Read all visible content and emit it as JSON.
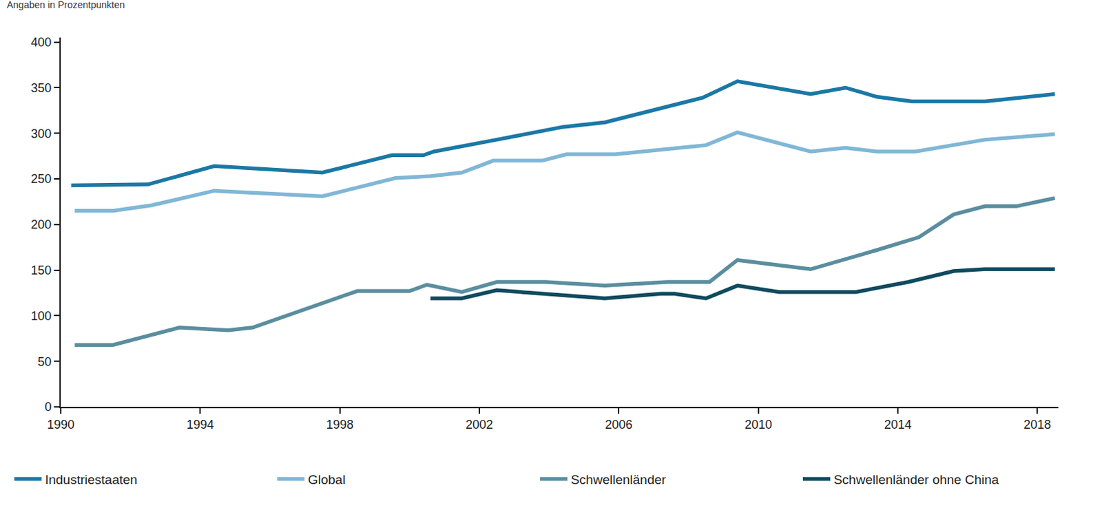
{
  "chart_data": {
    "type": "line",
    "y_label": "Angaben in Prozentpunkten",
    "xlim": [
      1990,
      2018.6
    ],
    "xticks": [
      1990,
      1994,
      1998,
      2002,
      2006,
      2010,
      2014,
      2018
    ],
    "ylim": [
      0,
      405
    ],
    "yticks": [
      0,
      50,
      100,
      150,
      200,
      250,
      300,
      350,
      400
    ],
    "grid": false,
    "legend": "bottom",
    "series": [
      {
        "name": "Industriestaaten",
        "color": "#1b78a5",
        "x": [
          1990.3,
          1992.5,
          1994.4,
          1997.5,
          1999.5,
          2000.4,
          2000.7,
          2001.3,
          2002.5,
          2004.4,
          2005.6,
          2008.4,
          2009.4,
          2011.5,
          2012.5,
          2013.4,
          2014.4,
          2016.5,
          2018.5
        ],
        "values": [
          243,
          244,
          264,
          257,
          276,
          276,
          280,
          284,
          293,
          307,
          312,
          339,
          357,
          343,
          350,
          340,
          335,
          335,
          343
        ]
      },
      {
        "name": "Global",
        "color": "#80b7d6",
        "x": [
          1990.4,
          1991.5,
          1992.6,
          1994.4,
          1997.5,
          1999.6,
          2000.6,
          2001.5,
          2002.4,
          2003.8,
          2004.5,
          2005.9,
          2008.5,
          2009.4,
          2011.5,
          2012.5,
          2013.4,
          2014.5,
          2016.5,
          2018.5
        ],
        "values": [
          215,
          215,
          221,
          237,
          231,
          251,
          253,
          257,
          270,
          270,
          277,
          277,
          287,
          301,
          280,
          284,
          280,
          280,
          293,
          299
        ]
      },
      {
        "name": "Schwellenländer",
        "color": "#5a8e9f",
        "x": [
          1990.4,
          1991.5,
          1993.4,
          1994.8,
          1995.5,
          1998.5,
          2000.0,
          2000.5,
          2001.5,
          2002.5,
          2003.9,
          2005.6,
          2007.4,
          2008.6,
          2009.4,
          2011.5,
          2013.4,
          2014.6,
          2015.6,
          2016.5,
          2017.4,
          2018.5
        ],
        "values": [
          68,
          68,
          87,
          84,
          87,
          127,
          127,
          134,
          126,
          137,
          137,
          133,
          137,
          137,
          161,
          151,
          172,
          186,
          211,
          220,
          220,
          229
        ]
      },
      {
        "name": "Schwellenländer ohne China",
        "color": "#0e4a5e",
        "x": [
          2000.6,
          2001.5,
          2002.5,
          2005.6,
          2007.2,
          2007.6,
          2008.5,
          2009.4,
          2010.6,
          2012.8,
          2014.3,
          2015.6,
          2016.5,
          2018.5
        ],
        "values": [
          119,
          119,
          128,
          119,
          124,
          124,
          119,
          133,
          126,
          126,
          137,
          149,
          151,
          151
        ]
      }
    ]
  }
}
